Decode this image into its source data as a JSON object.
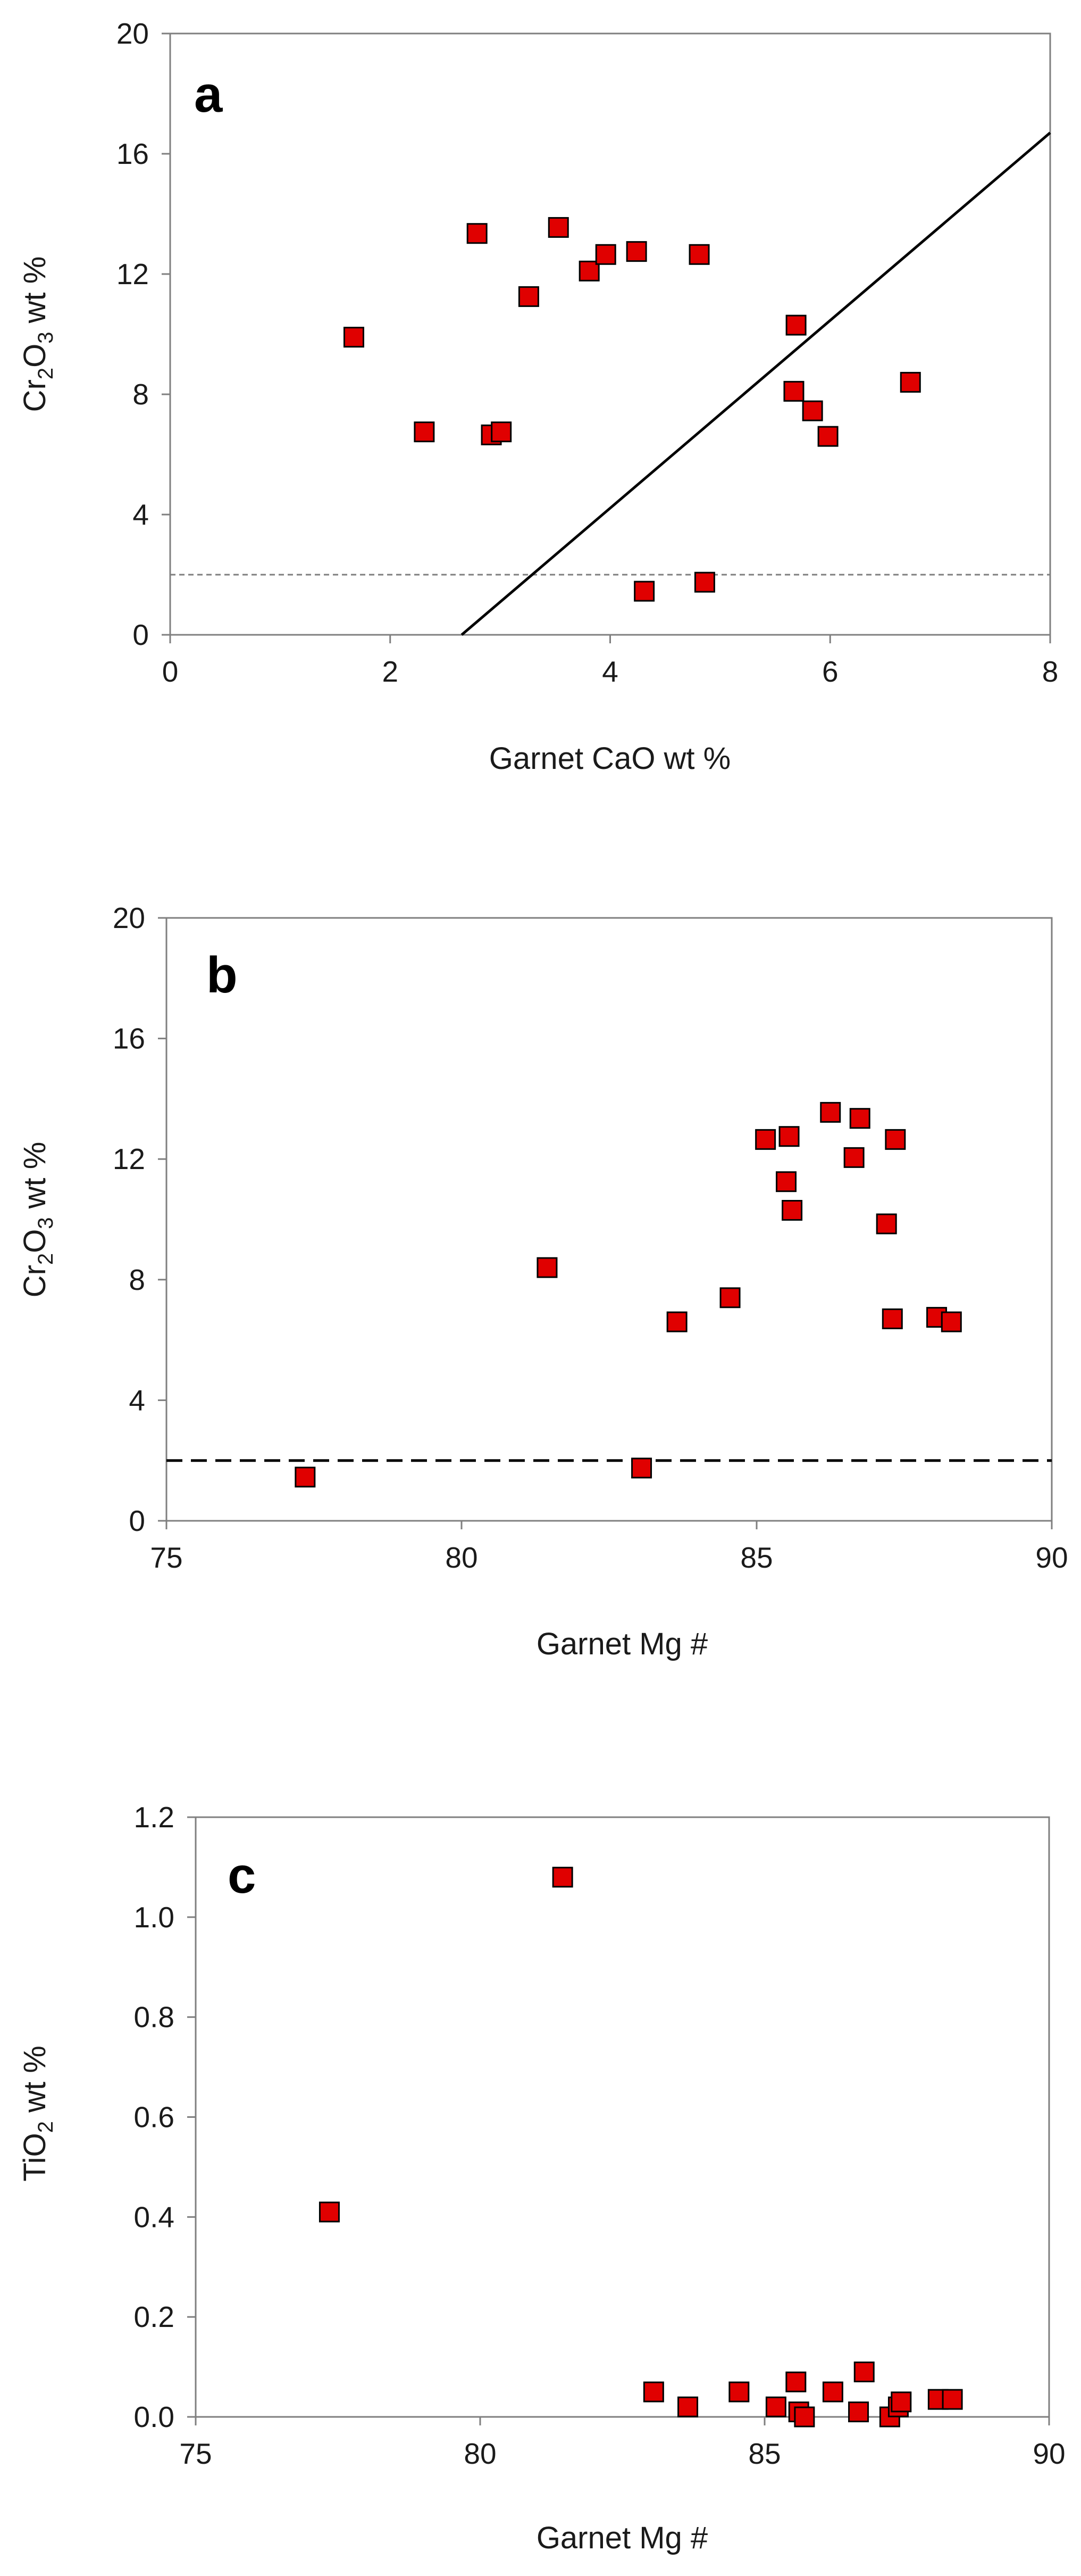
{
  "figure": {
    "colors": {
      "marker_fill": "#e00000",
      "marker_edge": "#000000",
      "axis": "#7f7f7f",
      "reference_line": "#000000",
      "threshold_line": "#7f7f7f"
    }
  },
  "chart_data": [
    {
      "type": "scatter",
      "panel": "a",
      "xlabel": "Garnet CaO wt %",
      "ylabel": {
        "prefix": "Cr",
        "sub1": "2",
        "mid": "O",
        "sub2": "3",
        "suffix": " wt %"
      },
      "xlim": [
        0,
        8
      ],
      "ylim": [
        0,
        20
      ],
      "xticks": [
        0,
        2,
        4,
        6,
        8
      ],
      "yticks": [
        0,
        4,
        8,
        12,
        16,
        20
      ],
      "tick_labels_x": [
        "0",
        "2",
        "4",
        "6",
        "8"
      ],
      "tick_labels_y": [
        "0",
        "4",
        "8",
        "12",
        "16",
        "20"
      ],
      "points": [
        [
          1.67,
          9.9
        ],
        [
          2.31,
          6.75
        ],
        [
          2.79,
          13.35
        ],
        [
          2.92,
          6.65
        ],
        [
          3.01,
          6.75
        ],
        [
          3.26,
          11.25
        ],
        [
          3.53,
          13.55
        ],
        [
          3.81,
          12.1
        ],
        [
          3.96,
          12.65
        ],
        [
          4.24,
          12.75
        ],
        [
          4.81,
          12.65
        ],
        [
          5.69,
          10.3
        ],
        [
          5.67,
          8.1
        ],
        [
          5.84,
          7.45
        ],
        [
          5.98,
          6.6
        ],
        [
          6.73,
          8.4
        ],
        [
          4.31,
          1.45
        ],
        [
          4.86,
          1.75
        ]
      ],
      "reference_line": {
        "style": "solid",
        "from": [
          2.65,
          0
        ],
        "to": [
          8.0,
          16.7
        ]
      },
      "threshold_line": {
        "style": "dashed",
        "y": 2
      }
    },
    {
      "type": "scatter",
      "panel": "b",
      "xlabel": "Garnet Mg #",
      "ylabel": {
        "prefix": "Cr",
        "sub1": "2",
        "mid": "O",
        "sub2": "3",
        "suffix": " wt %"
      },
      "xlim": [
        75,
        90
      ],
      "ylim": [
        0,
        20
      ],
      "xticks": [
        75,
        80,
        85,
        90
      ],
      "yticks": [
        0,
        4,
        8,
        12,
        16,
        20
      ],
      "tick_labels_x": [
        "75",
        "80",
        "85",
        "90"
      ],
      "tick_labels_y": [
        "0",
        "4",
        "8",
        "12",
        "16",
        "20"
      ],
      "points": [
        [
          77.35,
          1.45
        ],
        [
          81.45,
          8.4
        ],
        [
          83.05,
          1.75
        ],
        [
          83.65,
          6.6
        ],
        [
          84.55,
          7.4
        ],
        [
          85.15,
          12.65
        ],
        [
          85.55,
          12.75
        ],
        [
          85.5,
          11.25
        ],
        [
          85.6,
          10.3
        ],
        [
          86.25,
          13.55
        ],
        [
          86.65,
          12.05
        ],
        [
          86.75,
          13.35
        ],
        [
          87.2,
          9.85
        ],
        [
          87.35,
          12.65
        ],
        [
          87.3,
          6.7
        ],
        [
          88.05,
          6.75
        ],
        [
          88.3,
          6.6
        ]
      ],
      "threshold_line": {
        "style": "dashed",
        "y": 2
      }
    },
    {
      "type": "scatter",
      "panel": "c",
      "xlabel": "Garnet Mg #",
      "ylabel": {
        "prefix": "TiO",
        "sub1": "2",
        "mid": "",
        "sub2": "",
        "suffix": " wt %"
      },
      "xlim": [
        75,
        90
      ],
      "ylim": [
        0,
        1.2
      ],
      "xticks": [
        75,
        80,
        85,
        90
      ],
      "yticks": [
        0,
        0.2,
        0.4,
        0.6,
        0.8,
        1.0,
        1.2
      ],
      "tick_labels_x": [
        "75",
        "80",
        "85",
        "90"
      ],
      "tick_labels_y": [
        "0.0",
        "0.2",
        "0.4",
        "0.6",
        "0.8",
        "1.0",
        "1.2"
      ],
      "points": [
        [
          77.35,
          0.41
        ],
        [
          81.45,
          1.08
        ],
        [
          83.05,
          0.05
        ],
        [
          83.65,
          0.02
        ],
        [
          84.55,
          0.05
        ],
        [
          85.2,
          0.02
        ],
        [
          85.55,
          0.07
        ],
        [
          85.6,
          0.01
        ],
        [
          85.7,
          0.0
        ],
        [
          86.2,
          0.05
        ],
        [
          86.65,
          0.01
        ],
        [
          86.75,
          0.09
        ],
        [
          87.2,
          0.0
        ],
        [
          87.35,
          0.02
        ],
        [
          87.4,
          0.03
        ],
        [
          88.05,
          0.035
        ],
        [
          88.3,
          0.035
        ]
      ]
    }
  ]
}
